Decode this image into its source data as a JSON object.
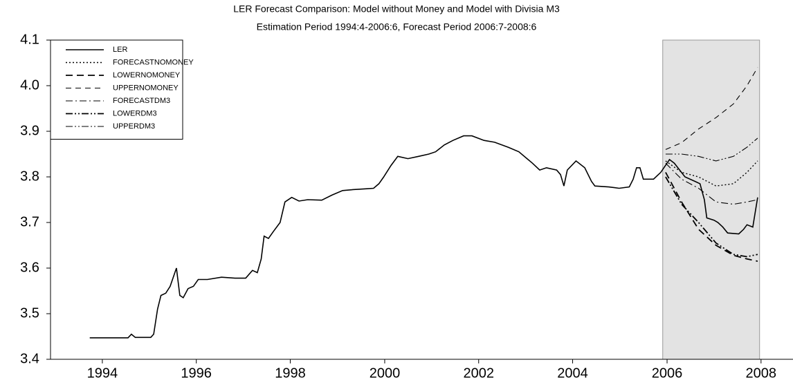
{
  "chart_data": {
    "type": "line",
    "title": "LER Forecast Comparison: Model without Money and Model with Divisia M3",
    "subtitle": "Estimation Period 1994:4-2006:6, Forecast Period 2006:7-2008:6",
    "xlim": [
      1993.86,
      2009.19
    ],
    "ylim": [
      3.4,
      4.1
    ],
    "xticks": [
      {
        "value": 1994.93,
        "label": "1994"
      },
      {
        "value": 1996.87,
        "label": "1996"
      },
      {
        "value": 1998.81,
        "label": "1998"
      },
      {
        "value": 2000.76,
        "label": "2000"
      },
      {
        "value": 2002.7,
        "label": "2002"
      },
      {
        "value": 2004.64,
        "label": "2004"
      },
      {
        "value": 2006.59,
        "label": "2006"
      },
      {
        "value": 2008.53,
        "label": "2008"
      }
    ],
    "yticks": [
      3.4,
      3.5,
      3.6,
      3.7,
      3.8,
      3.9,
      {
        "value": 4,
        "label": "4.0"
      },
      4.1
    ],
    "shaded_region": {
      "xlim": [
        2006.5,
        2008.5
      ],
      "color": "#e3e3e3"
    },
    "legend": "upper left",
    "series": [
      {
        "name": "LER",
        "color": "#000000",
        "dash": "none",
        "width": 1.6,
        "x": [
          1994.67,
          1995.46,
          1995.53,
          1995.61,
          1995.93,
          1995.99,
          1996.07,
          1996.14,
          1996.24,
          1996.33,
          1996.46,
          1996.53,
          1996.6,
          1996.7,
          1996.81,
          1996.91,
          1997.1,
          1997.39,
          1997.67,
          1997.89,
          1998.03,
          1998.13,
          1998.21,
          1998.27,
          1998.36,
          1998.46,
          1998.6,
          1998.7,
          1998.84,
          1998.99,
          1999.17,
          1999.46,
          1999.67,
          1999.89,
          2000.1,
          2000.39,
          2000.53,
          2000.64,
          2000.74,
          2000.89,
          2001.03,
          2001.24,
          2001.46,
          2001.67,
          2001.81,
          2001.99,
          2002.17,
          2002.39,
          2002.56,
          2002.81,
          2003.03,
          2003.31,
          2003.53,
          2003.81,
          2003.96,
          2004.1,
          2004.31,
          2004.39,
          2004.46,
          2004.53,
          2004.71,
          2004.89,
          2005.03,
          2005.1,
          2005.39,
          2005.6,
          2005.81,
          2005.89,
          2005.96,
          2006.03,
          2006.1,
          2006.31,
          2006.46,
          2006.64,
          2006.74,
          2006.96,
          2007.17,
          2007.27,
          2007.36,
          2007.41,
          2007.56,
          2007.64,
          2007.74,
          2007.84,
          2008.07,
          2008.17,
          2008.24,
          2008.36,
          2008.46
        ],
        "values": [
          3.447,
          3.447,
          3.455,
          3.448,
          3.448,
          3.455,
          3.51,
          3.54,
          3.545,
          3.56,
          3.6,
          3.54,
          3.535,
          3.555,
          3.56,
          3.575,
          3.575,
          3.58,
          3.578,
          3.578,
          3.595,
          3.59,
          3.62,
          3.67,
          3.665,
          3.68,
          3.7,
          3.745,
          3.755,
          3.747,
          3.75,
          3.749,
          3.76,
          3.77,
          3.772,
          3.774,
          3.775,
          3.785,
          3.8,
          3.825,
          3.845,
          3.84,
          3.845,
          3.85,
          3.855,
          3.87,
          3.88,
          3.89,
          3.89,
          3.88,
          3.876,
          3.865,
          3.855,
          3.83,
          3.815,
          3.82,
          3.815,
          3.805,
          3.78,
          3.815,
          3.835,
          3.82,
          3.79,
          3.78,
          3.778,
          3.775,
          3.778,
          3.795,
          3.82,
          3.82,
          3.795,
          3.795,
          3.81,
          3.838,
          3.83,
          3.8,
          3.79,
          3.785,
          3.75,
          3.71,
          3.705,
          3.7,
          3.69,
          3.677,
          3.675,
          3.685,
          3.695,
          3.69,
          3.755
        ]
      },
      {
        "name": "FORECASTNOMONEY",
        "color": "#000000",
        "dash": "2,3",
        "width": 1.4,
        "x": [
          2006.56,
          2006.89,
          2007.24,
          2007.6,
          2007.96,
          2008.24,
          2008.46
        ],
        "values": [
          3.835,
          3.81,
          3.8,
          3.78,
          3.785,
          3.81,
          3.835
        ]
      },
      {
        "name": "LOWERNOMONEY",
        "color": "#000000",
        "dash": "10,6",
        "width": 1.8,
        "x": [
          2006.56,
          2006.89,
          2007.24,
          2007.6,
          2007.96,
          2008.24,
          2008.46
        ],
        "values": [
          3.81,
          3.745,
          3.685,
          3.65,
          3.628,
          3.62,
          3.615
        ]
      },
      {
        "name": "UPPERNOMONEY",
        "color": "#000000",
        "dash": "8,6",
        "width": 1.1,
        "x": [
          2006.56,
          2006.89,
          2007.24,
          2007.6,
          2007.96,
          2008.24,
          2008.46
        ],
        "values": [
          3.86,
          3.875,
          3.905,
          3.93,
          3.96,
          4.0,
          4.04
        ]
      },
      {
        "name": "FORECASTDM3",
        "color": "#000000",
        "dash": "10,4,2,4",
        "width": 1.1,
        "x": [
          2006.56,
          2006.89,
          2007.24,
          2007.6,
          2007.96,
          2008.24,
          2008.46
        ],
        "values": [
          3.83,
          3.795,
          3.775,
          3.745,
          3.74,
          3.745,
          3.75
        ]
      },
      {
        "name": "LOWERDM3",
        "color": "#000000",
        "dash": "10,3,2,3,2,3",
        "width": 1.8,
        "x": [
          2006.56,
          2006.89,
          2007.24,
          2007.6,
          2007.96,
          2008.24,
          2008.46
        ],
        "values": [
          3.8,
          3.74,
          3.7,
          3.655,
          3.63,
          3.625,
          3.63
        ]
      },
      {
        "name": "UPPERDM3",
        "color": "#000000",
        "dash": "10,3,2,3,2,3",
        "width": 1.1,
        "x": [
          2006.56,
          2006.89,
          2007.24,
          2007.6,
          2007.96,
          2008.24,
          2008.46
        ],
        "values": [
          3.85,
          3.85,
          3.845,
          3.835,
          3.845,
          3.865,
          3.885
        ]
      }
    ]
  }
}
